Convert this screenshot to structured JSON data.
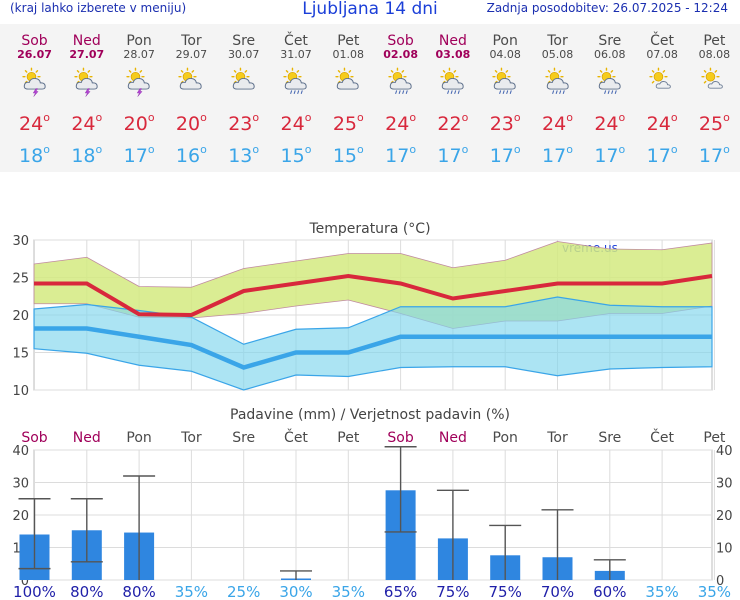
{
  "header": {
    "menu_note": "(kraj lahko izberete v meniju)",
    "title": "Ljubljana 14 dni",
    "updated": "Zadnja posodobitev: 26.07.2025 - 12:24"
  },
  "days": [
    {
      "name": "Sob",
      "date": "26.07",
      "weekend": true,
      "icon": "storm-sun-icon",
      "tmax": "24",
      "tmin": "18"
    },
    {
      "name": "Ned",
      "date": "27.07",
      "weekend": true,
      "icon": "storm-sun-icon",
      "tmax": "24",
      "tmin": "18"
    },
    {
      "name": "Pon",
      "date": "28.07",
      "weekend": false,
      "icon": "storm-sun-icon",
      "tmax": "20",
      "tmin": "17"
    },
    {
      "name": "Tor",
      "date": "29.07",
      "weekend": false,
      "icon": "cloudy-sun-icon",
      "tmax": "20",
      "tmin": "16"
    },
    {
      "name": "Sre",
      "date": "30.07",
      "weekend": false,
      "icon": "cloudy-sun-icon",
      "tmax": "23",
      "tmin": "13"
    },
    {
      "name": "Čet",
      "date": "31.07",
      "weekend": false,
      "icon": "rain-sun-icon",
      "tmax": "24",
      "tmin": "15"
    },
    {
      "name": "Pet",
      "date": "01.08",
      "weekend": false,
      "icon": "cloudy-sun-icon",
      "tmax": "25",
      "tmin": "15"
    },
    {
      "name": "Sob",
      "date": "02.08",
      "weekend": true,
      "icon": "rain-sun-icon",
      "tmax": "24",
      "tmin": "17"
    },
    {
      "name": "Ned",
      "date": "03.08",
      "weekend": true,
      "icon": "rain-sun-icon",
      "tmax": "22",
      "tmin": "17"
    },
    {
      "name": "Pon",
      "date": "04.08",
      "weekend": false,
      "icon": "rain-sun-icon",
      "tmax": "23",
      "tmin": "17"
    },
    {
      "name": "Tor",
      "date": "05.08",
      "weekend": false,
      "icon": "rain-sun-icon",
      "tmax": "24",
      "tmin": "17"
    },
    {
      "name": "Sre",
      "date": "06.08",
      "weekend": false,
      "icon": "rain-sun-icon",
      "tmax": "24",
      "tmin": "17"
    },
    {
      "name": "Čet",
      "date": "07.08",
      "weekend": false,
      "icon": "partly-cloudy-sun-icon",
      "tmax": "24",
      "tmin": "17"
    },
    {
      "name": "Pet",
      "date": "08.08",
      "weekend": false,
      "icon": "partly-cloudy-sun-icon",
      "tmax": "25",
      "tmin": "17"
    }
  ],
  "colors": {
    "tmax": "#d8283c",
    "tmin": "#3aa5e8",
    "bar": "#2f86e0",
    "weekend": "#a0005a",
    "prob_low": "#3aa5e8",
    "prob_high": "#1f1fa8"
  },
  "chart_data": [
    {
      "type": "line",
      "title": "Temperatura (°C)",
      "watermark": "vreme.us",
      "ylim": [
        10,
        30
      ],
      "yticks": [
        10,
        15,
        20,
        25,
        30
      ],
      "series": [
        {
          "values": [
            24.2,
            24.2,
            20.1,
            20.0,
            23.2,
            24.2,
            25.2,
            24.2,
            22.2,
            23.2,
            24.2,
            24.2,
            24.2,
            25.2
          ]
        },
        {
          "values": [
            26.8,
            27.7,
            23.8,
            23.7,
            26.2,
            27.2,
            28.2,
            28.2,
            26.3,
            27.3,
            29.8,
            28.8,
            28.7,
            29.6
          ]
        },
        {
          "values": [
            21.5,
            21.5,
            19.7,
            19.6,
            20.2,
            21.2,
            22.0,
            20.2,
            18.2,
            19.2,
            19.2,
            20.2,
            20.2,
            21.2
          ]
        },
        {
          "values": [
            18.2,
            18.2,
            17.1,
            16.0,
            13.0,
            15.0,
            15.0,
            17.1,
            17.1,
            17.1,
            17.1,
            17.1,
            17.1,
            17.1
          ]
        },
        {
          "values": [
            20.8,
            21.4,
            20.6,
            19.7,
            16.1,
            18.1,
            18.3,
            21.1,
            21.1,
            21.1,
            22.4,
            21.3,
            21.1,
            21.1
          ]
        },
        {
          "values": [
            15.5,
            14.9,
            13.3,
            12.5,
            10.0,
            12.0,
            11.8,
            13.0,
            13.1,
            13.1,
            11.9,
            12.8,
            13.0,
            13.1
          ]
        }
      ]
    },
    {
      "type": "bar",
      "title": "Padavine (mm) / Verjetnost padavin (%)",
      "ylim": [
        0,
        40
      ],
      "yticks": [
        0,
        10,
        20,
        30,
        40
      ],
      "categories": [
        "Sob",
        "Ned",
        "Pon",
        "Tor",
        "Sre",
        "Čet",
        "Pet",
        "Sob",
        "Ned",
        "Pon",
        "Tor",
        "Sre",
        "Čet",
        "Pet"
      ],
      "values": [
        14.0,
        15.3,
        14.6,
        0,
        0,
        0.3,
        0,
        27.6,
        12.8,
        7.6,
        7.0,
        2.8,
        0,
        0
      ],
      "err_low": [
        3.5,
        5.6,
        0,
        0,
        0,
        0,
        0,
        14.8,
        0,
        0,
        0,
        0,
        0,
        0
      ],
      "err_high": [
        25.0,
        25.0,
        32.0,
        0,
        0,
        2.8,
        0,
        41.0,
        27.6,
        16.8,
        21.6,
        6.2,
        0,
        0
      ],
      "probability": [
        "100%",
        "80%",
        "80%",
        "35%",
        "25%",
        "30%",
        "35%",
        "65%",
        "75%",
        "75%",
        "70%",
        "60%",
        "35%",
        "35%"
      ]
    }
  ]
}
